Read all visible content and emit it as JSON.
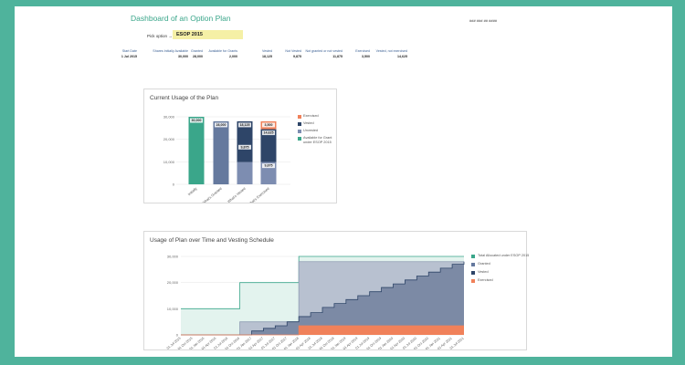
{
  "dashboard": {
    "title": "Dashboard of an Option Plan",
    "top_right_text": "### ### ## ####",
    "pick_label": "Pick option →",
    "pick_value": "ESOP 2015"
  },
  "stats": [
    {
      "header": "Start Date",
      "value": "1 Jul 2015"
    },
    {
      "header": "Shares Initially Available",
      "value": "30,000"
    },
    {
      "header": "Granted",
      "value": "28,000"
    },
    {
      "header": "Available for Grants",
      "value": "2,000"
    },
    {
      "header": "Vested",
      "value": "18,125"
    },
    {
      "header": "Not Vested",
      "value": "9,875"
    },
    {
      "header": "Not granted or not vested",
      "value": "11,875"
    },
    {
      "header": "Exercised",
      "value": "3,500"
    },
    {
      "header": "Vested, not exercised",
      "value": "14,625"
    }
  ],
  "colors": {
    "background": "#4fb39c",
    "available": "#3aa68a",
    "granted": "#65799e",
    "vested": "#2e4568",
    "unvested": "#7d8db1",
    "exercised": "#f0815a",
    "title": "#3aa68a"
  },
  "chart_data": [
    {
      "type": "bar",
      "title": "Current Usage of the Plan",
      "categories": [
        "Initially",
        "What's Granted",
        "What's Vested",
        "What's Exercised"
      ],
      "ylim": [
        0,
        30000
      ],
      "yticks": [
        "0",
        "10,000",
        "20,000",
        "30,000"
      ],
      "series": [
        {
          "name": "Available for Grant under ESOP 2015",
          "values": [
            30000,
            0,
            0,
            0
          ]
        },
        {
          "name": "Granted",
          "values": [
            0,
            28000,
            0,
            0
          ]
        },
        {
          "name": "Vested",
          "values": [
            0,
            0,
            18125,
            14625
          ]
        },
        {
          "name": "Unvested",
          "values": [
            0,
            0,
            9875,
            9875
          ]
        },
        {
          "name": "Exercised",
          "values": [
            0,
            0,
            0,
            3500
          ]
        }
      ],
      "data_labels": [
        {
          "category": "Initially",
          "text": "30,000"
        },
        {
          "category": "What's Granted",
          "text": "28,000"
        },
        {
          "category": "What's Vested",
          "text": "18,125"
        },
        {
          "category": "What's Vested",
          "text": "9,875"
        },
        {
          "category": "What's Exercised",
          "text": "3,500"
        },
        {
          "category": "What's Exercised",
          "text": "14,625"
        },
        {
          "category": "What's Exercised",
          "text": "9,875"
        }
      ],
      "legend_order": [
        "Exercised",
        "Vested",
        "Unvested",
        "Available for Grant under ESOP 2015"
      ],
      "legend": "right"
    },
    {
      "type": "area",
      "title": "Usage of Plan over Time and Vesting Schedule",
      "ylim": [
        0,
        30000
      ],
      "yticks": [
        "0",
        "10,000",
        "20,000",
        "30,000"
      ],
      "x": [
        "01 Jul 2015",
        "01 Oct 2015",
        "01 Jan 2016",
        "01 Apr 2016",
        "01 Jul 2016",
        "01 Oct 2016",
        "01 Jan 2017",
        "01 Apr 2017",
        "01 Jul 2017",
        "01 Oct 2017",
        "01 Jan 2018",
        "01 Apr 2018",
        "01 Jul 2018",
        "01 Oct 2018",
        "01 Jan 2019",
        "01 Apr 2019",
        "01 Jul 2019",
        "01 Oct 2019",
        "01 Jan 2020",
        "01 Apr 2020",
        "01 Jul 2020",
        "01 Oct 2020",
        "01 Jan 2021",
        "01 Apr 2021",
        "01 Jul 2021"
      ],
      "series": [
        {
          "name": "Total Allocated under ESOP 2015",
          "values": [
            10000,
            10000,
            10000,
            10000,
            10000,
            20000,
            20000,
            20000,
            20000,
            20000,
            30000,
            30000,
            30000,
            30000,
            30000,
            30000,
            30000,
            30000,
            30000,
            30000,
            30000,
            30000,
            30000,
            30000,
            30000
          ]
        },
        {
          "name": "Granted",
          "values": [
            0,
            0,
            0,
            0,
            0,
            5000,
            5000,
            5000,
            5000,
            5000,
            28000,
            28000,
            28000,
            28000,
            28000,
            28000,
            28000,
            28000,
            28000,
            28000,
            28000,
            28000,
            28000,
            28000,
            28000
          ]
        },
        {
          "name": "Vested",
          "values": [
            0,
            0,
            0,
            0,
            0,
            0,
            1500,
            2500,
            3500,
            5000,
            7000,
            8500,
            10500,
            12000,
            13500,
            15000,
            16500,
            18125,
            19500,
            21000,
            22500,
            24000,
            25500,
            27000,
            28000
          ]
        },
        {
          "name": "Exercised",
          "values": [
            0,
            0,
            0,
            0,
            0,
            0,
            0,
            0,
            0,
            0,
            3500,
            3500,
            3500,
            3500,
            3500,
            3500,
            3500,
            3500,
            3500,
            3500,
            3500,
            3500,
            3500,
            3500,
            3500
          ]
        }
      ],
      "legend": "right"
    }
  ]
}
